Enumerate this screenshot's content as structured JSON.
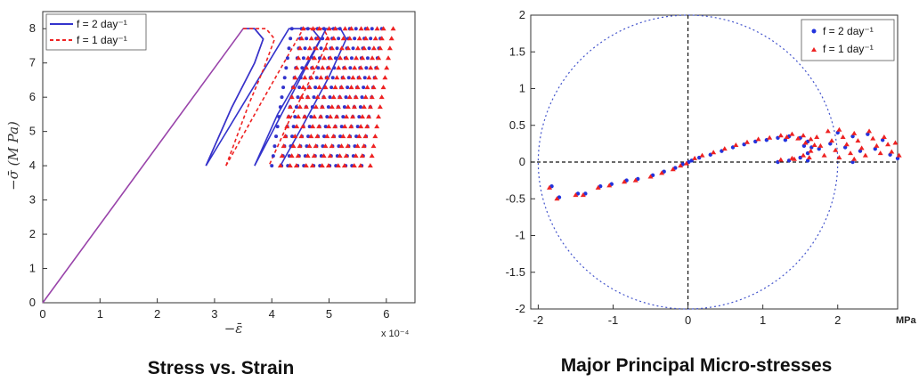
{
  "chart_data": [
    {
      "type": "line",
      "title": "Stress vs. Strain",
      "xlabel": "−ε̄",
      "ylabel": "−σ̄ (M Pa)",
      "x_multiplier": "x 10⁻⁴",
      "xlim": [
        0,
        6.5
      ],
      "ylim": [
        0,
        8.5
      ],
      "xticks": [
        "0",
        "1",
        "2",
        "3",
        "4",
        "5",
        "6"
      ],
      "yticks": [
        "0",
        "1",
        "2",
        "3",
        "4",
        "5",
        "6",
        "7",
        "8"
      ],
      "legend_position": "top-left",
      "colors": {
        "f2": "#3333cc",
        "f1": "#ee2222",
        "ramp": "#9944aa"
      },
      "series": [
        {
          "name": "f = 2 day⁻¹",
          "style": "solid",
          "segments": [
            [
              [
                0,
                0
              ],
              [
                3.5,
                8
              ],
              [
                3.7,
                8
              ],
              [
                3.85,
                7.7
              ],
              [
                3.7,
                7
              ],
              [
                3.3,
                5.7
              ],
              [
                2.85,
                4
              ]
            ],
            [
              [
                2.85,
                4
              ],
              [
                3.5,
                5.8
              ],
              [
                4.3,
                8
              ],
              [
                4.7,
                8
              ],
              [
                4.85,
                7.7
              ],
              [
                4.55,
                6.8
              ],
              [
                4.1,
                5.5
              ],
              [
                3.7,
                4
              ]
            ],
            [
              [
                3.7,
                4
              ],
              [
                4.2,
                5.6
              ],
              [
                4.95,
                8
              ],
              [
                5.2,
                8
              ],
              [
                5.3,
                7.7
              ],
              [
                5.0,
                6.6
              ],
              [
                4.55,
                5.2
              ],
              [
                4.15,
                4
              ]
            ]
          ]
        },
        {
          "name": "f = 1 day⁻¹",
          "style": "dashed",
          "segments": [
            [
              [
                3.5,
                8
              ],
              [
                3.9,
                8
              ],
              [
                4.05,
                7.7
              ],
              [
                3.85,
                6.8
              ],
              [
                3.6,
                5.8
              ],
              [
                3.2,
                4
              ]
            ],
            [
              [
                3.2,
                4
              ],
              [
                3.8,
                5.8
              ],
              [
                4.55,
                8
              ],
              [
                4.9,
                8
              ],
              [
                5.0,
                7.7
              ],
              [
                4.7,
                6.6
              ],
              [
                4.3,
                5.3
              ],
              [
                3.95,
                4
              ]
            ]
          ]
        }
      ],
      "marker_band": {
        "blue": {
          "x_start": [
            4.0,
            4.35
          ],
          "count": 12,
          "spacing": 0.14
        },
        "red": {
          "x_start": [
            4.15,
            4.55
          ],
          "count": 12,
          "spacing": 0.14
        },
        "y_range": [
          4,
          8
        ]
      }
    },
    {
      "type": "scatter",
      "title": "Major Principal Micro-stresses",
      "x_unit_label": "MPa",
      "xlim": [
        -2.1,
        2.8
      ],
      "ylim": [
        -2,
        2
      ],
      "xticks": [
        "-2",
        "-1",
        "0",
        "1",
        "2"
      ],
      "yticks": [
        "2",
        "1.5",
        "1",
        "0.5",
        "0",
        "-0.5",
        "-1",
        "-1.5",
        "-2"
      ],
      "reference_circle_radius": 2,
      "legend_position": "top-right",
      "colors": {
        "f2": "#2233dd",
        "f1": "#ee2222",
        "circle": "#4455cc",
        "axes_dash": "#111111"
      },
      "series": [
        {
          "name": "f = 2 day⁻¹",
          "marker": "circle"
        },
        {
          "name": "f = 1 day⁻¹",
          "marker": "triangle"
        }
      ],
      "tail_points": [
        [
          -1.85,
          -0.35
        ],
        [
          -1.75,
          -0.5
        ],
        [
          -1.5,
          -0.45
        ],
        [
          -1.4,
          -0.45
        ],
        [
          -1.2,
          -0.35
        ],
        [
          -1.05,
          -0.32
        ],
        [
          -0.85,
          -0.27
        ],
        [
          -0.7,
          -0.25
        ],
        [
          -0.5,
          -0.2
        ],
        [
          -0.35,
          -0.15
        ],
        [
          -0.2,
          -0.1
        ],
        [
          -0.1,
          -0.05
        ],
        [
          -0.02,
          -0.02
        ]
      ],
      "arc_points": [
        [
          0.05,
          0.02
        ],
        [
          0.15,
          0.06
        ],
        [
          0.3,
          0.1
        ],
        [
          0.45,
          0.15
        ],
        [
          0.6,
          0.2
        ],
        [
          0.75,
          0.24
        ],
        [
          0.9,
          0.28
        ],
        [
          1.05,
          0.3
        ],
        [
          1.2,
          0.33
        ],
        [
          1.35,
          0.35
        ],
        [
          1.5,
          0.33
        ],
        [
          1.6,
          0.28
        ],
        [
          1.65,
          0.2
        ],
        [
          1.6,
          0.12
        ],
        [
          1.5,
          0.06
        ],
        [
          1.35,
          0.02
        ],
        [
          1.2,
          0.0
        ]
      ],
      "cloud_points": [
        [
          1.3,
          0.3
        ],
        [
          1.45,
          0.28
        ],
        [
          1.55,
          0.22
        ],
        [
          1.7,
          0.3
        ],
        [
          1.75,
          0.18
        ],
        [
          1.85,
          0.38
        ],
        [
          1.9,
          0.25
        ],
        [
          1.95,
          0.12
        ],
        [
          2.0,
          0.4
        ],
        [
          2.05,
          0.3
        ],
        [
          2.1,
          0.2
        ],
        [
          2.15,
          0.08
        ],
        [
          2.2,
          0.35
        ],
        [
          2.25,
          0.25
        ],
        [
          2.3,
          0.15
        ],
        [
          2.35,
          0.05
        ],
        [
          2.4,
          0.38
        ],
        [
          2.45,
          0.28
        ],
        [
          2.5,
          0.18
        ],
        [
          2.55,
          0.08
        ],
        [
          2.6,
          0.3
        ],
        [
          2.65,
          0.2
        ],
        [
          2.7,
          0.1
        ],
        [
          2.75,
          0.22
        ],
        [
          2.8,
          0.05
        ],
        [
          1.8,
          0.05
        ],
        [
          1.6,
          0.02
        ],
        [
          2.0,
          0.02
        ],
        [
          2.2,
          0.0
        ],
        [
          1.4,
          0.0
        ]
      ]
    }
  ]
}
